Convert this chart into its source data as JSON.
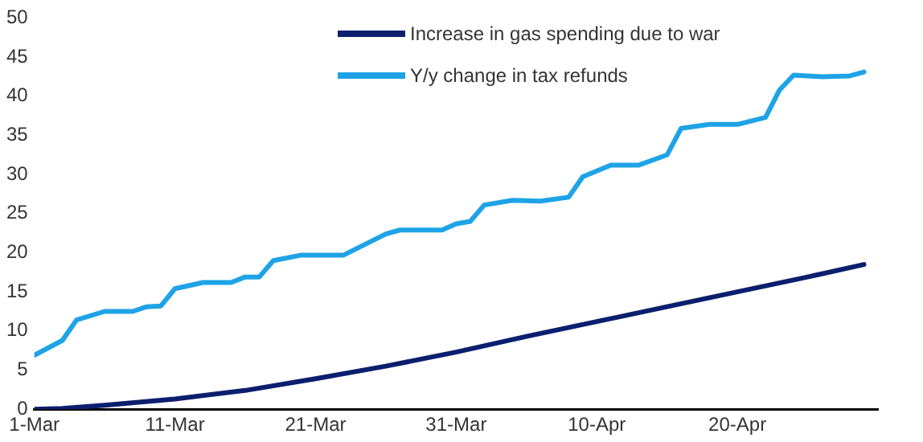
{
  "chart_data": {
    "type": "line",
    "legend": "top",
    "grid": false,
    "marker": "none",
    "line_style": "solid",
    "xlim": [
      "--03-01",
      "--04-30"
    ],
    "xticks": [
      {
        "value": "--03-01",
        "label": "1-Mar"
      },
      {
        "value": "--03-11",
        "label": "11-Mar"
      },
      {
        "value": "--03-21",
        "label": "21-Mar"
      },
      {
        "value": "--03-31",
        "label": "31-Mar"
      },
      {
        "value": "--04-10",
        "label": "10-Apr"
      },
      {
        "value": "--04-20",
        "label": "20-Apr"
      }
    ],
    "ylim": [
      0,
      50
    ],
    "yticks": [
      0,
      5,
      10,
      15,
      20,
      25,
      30,
      35,
      40,
      45,
      50
    ],
    "series": [
      {
        "name": "Increase in gas spending due to war",
        "color": "#0b1f6e",
        "x": [
          "--03-01",
          "--03-03",
          "--03-06",
          "--03-11",
          "--03-16",
          "--03-21",
          "--03-26",
          "--03-31",
          "--04-05",
          "--04-10",
          "--04-15",
          "--04-20",
          "--04-25",
          "--04-29"
        ],
        "values": [
          0,
          0.1,
          0.5,
          1.3,
          2.4,
          3.9,
          5.5,
          7.3,
          9.3,
          11.2,
          13.1,
          15.0,
          16.9,
          18.5
        ]
      },
      {
        "name": "Y/y change in tax refunds",
        "color": "#1ea3e6",
        "x": [
          "--03-01",
          "--03-03",
          "--03-04",
          "--03-06",
          "--03-08",
          "--03-09",
          "--03-10",
          "--03-11",
          "--03-13",
          "--03-15",
          "--03-16",
          "--03-17",
          "--03-18",
          "--03-20",
          "--03-23",
          "--03-24",
          "--03-26",
          "--03-27",
          "--03-30",
          "--03-31",
          "--04-01",
          "--04-02",
          "--04-04",
          "--04-06",
          "--04-08",
          "--04-09",
          "--04-11",
          "--04-13",
          "--04-15",
          "--04-16",
          "--04-18",
          "--04-20",
          "--04-22",
          "--04-23",
          "--04-24",
          "--04-26",
          "--04-28",
          "--04-29"
        ],
        "values": [
          6.9,
          8.8,
          11.4,
          12.5,
          12.5,
          13.1,
          13.2,
          15.4,
          16.2,
          16.2,
          16.9,
          16.9,
          19.0,
          19.7,
          19.7,
          20.6,
          22.4,
          22.9,
          22.9,
          23.7,
          24.0,
          26.1,
          26.7,
          26.6,
          27.1,
          29.7,
          31.2,
          31.2,
          32.5,
          35.9,
          36.4,
          36.4,
          37.3,
          40.8,
          42.7,
          42.5,
          42.6,
          43.1
        ]
      }
    ]
  }
}
